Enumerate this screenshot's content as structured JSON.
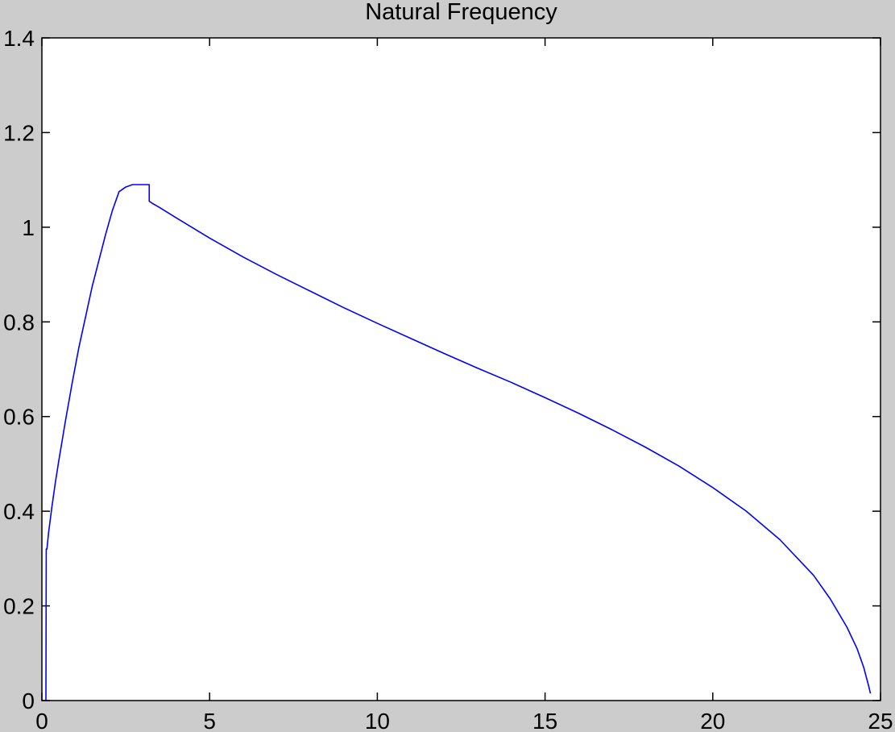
{
  "colors": {
    "figure_background": "#cccccc",
    "axes_background": "#ffffff",
    "line": "#0000ff",
    "axes_color": "#000000"
  },
  "chart_data": {
    "type": "line",
    "title": "Natural Frequency",
    "xlabel": "",
    "ylabel": "",
    "xlim": [
      0,
      25
    ],
    "ylim": [
      0,
      1.4
    ],
    "xticks": [
      0,
      5,
      10,
      15,
      20,
      25
    ],
    "yticks": [
      0,
      0.2,
      0.4,
      0.6,
      0.8,
      1,
      1.2,
      1.4
    ],
    "xtick_labels": [
      "0",
      "5",
      "10",
      "15",
      "20",
      "25"
    ],
    "ytick_labels": [
      "0",
      "0.2",
      "0.4",
      "0.6",
      "0.8",
      "1",
      "1.2",
      "1.4"
    ],
    "grid": false,
    "series": [
      {
        "color": "#0000ff",
        "x": [
          0.12,
          0.13,
          0.15,
          0.2,
          0.3,
          0.4,
          0.5,
          0.7,
          0.9,
          1.1,
          1.3,
          1.5,
          1.7,
          1.9,
          2.1,
          2.3,
          2.5,
          2.7,
          2.8,
          2.9,
          3.0,
          3.1,
          3.2,
          3.2,
          3.3,
          3.5,
          4.0,
          5.0,
          6.0,
          7.0,
          8.0,
          9.0,
          10.0,
          11.0,
          12.0,
          13.0,
          14.0,
          15.0,
          16.0,
          17.0,
          18.0,
          19.0,
          20.0,
          21.0,
          22.0,
          23.0,
          23.5,
          24.0,
          24.3,
          24.5,
          24.65,
          24.7
        ],
        "y": [
          0.0,
          0.32,
          0.32,
          0.355,
          0.41,
          0.46,
          0.505,
          0.59,
          0.67,
          0.745,
          0.81,
          0.875,
          0.93,
          0.985,
          1.035,
          1.075,
          1.085,
          1.09,
          1.09,
          1.09,
          1.09,
          1.09,
          1.09,
          1.055,
          1.05,
          1.042,
          1.02,
          0.977,
          0.937,
          0.9,
          0.865,
          0.83,
          0.797,
          0.765,
          0.733,
          0.702,
          0.672,
          0.64,
          0.607,
          0.572,
          0.535,
          0.495,
          0.45,
          0.4,
          0.34,
          0.265,
          0.215,
          0.155,
          0.11,
          0.07,
          0.03,
          0.015
        ]
      }
    ]
  }
}
